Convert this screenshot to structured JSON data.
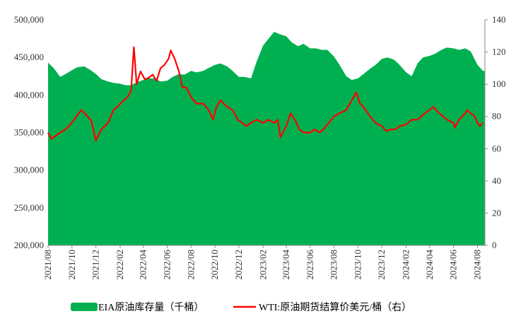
{
  "chart_data": {
    "type": "area+line",
    "title": "",
    "series": [
      {
        "name": "EIA原油库存量（千桶）",
        "kind": "area",
        "axis": "left",
        "color": "#00b050",
        "x": [
          "2021-08-01",
          "2021-08-15",
          "2021-09-01",
          "2021-09-15",
          "2021-10-01",
          "2021-10-15",
          "2021-11-01",
          "2021-11-15",
          "2021-12-01",
          "2021-12-15",
          "2022-01-01",
          "2022-01-15",
          "2022-02-01",
          "2022-02-15",
          "2022-03-01",
          "2022-03-15",
          "2022-04-01",
          "2022-04-15",
          "2022-05-01",
          "2022-05-15",
          "2022-06-01",
          "2022-06-15",
          "2022-07-01",
          "2022-07-15",
          "2022-08-01",
          "2022-08-15",
          "2022-09-01",
          "2022-09-15",
          "2022-10-01",
          "2022-10-15",
          "2022-11-01",
          "2022-11-15",
          "2022-12-01",
          "2022-12-15",
          "2023-01-01",
          "2023-01-15",
          "2023-02-01",
          "2023-02-15",
          "2023-03-01",
          "2023-03-15",
          "2023-04-01",
          "2023-04-15",
          "2023-05-01",
          "2023-05-15",
          "2023-06-01",
          "2023-06-15",
          "2023-07-01",
          "2023-07-15",
          "2023-08-01",
          "2023-08-15",
          "2023-09-01",
          "2023-09-15",
          "2023-10-01",
          "2023-10-15",
          "2023-11-01",
          "2023-11-15",
          "2023-12-01",
          "2023-12-15",
          "2024-01-01",
          "2024-01-15",
          "2024-02-01",
          "2024-02-15",
          "2024-03-01",
          "2024-03-15",
          "2024-04-01",
          "2024-04-15",
          "2024-05-01",
          "2024-05-15",
          "2024-06-01",
          "2024-06-15",
          "2024-07-01",
          "2024-07-15",
          "2024-08-01",
          "2024-08-15"
        ],
        "values": [
          443000,
          436000,
          424000,
          428000,
          433000,
          437000,
          438000,
          434000,
          428000,
          421000,
          418000,
          416000,
          415000,
          413000,
          413000,
          417000,
          420000,
          422000,
          422000,
          418000,
          419000,
          424000,
          428000,
          427000,
          432000,
          430000,
          432000,
          436000,
          440000,
          442000,
          438000,
          432000,
          424000,
          424000,
          422000,
          444000,
          466000,
          475000,
          484000,
          481000,
          478000,
          470000,
          465000,
          468000,
          462000,
          462000,
          460000,
          460000,
          451000,
          440000,
          425000,
          420000,
          422000,
          428000,
          435000,
          440000,
          448000,
          450000,
          447000,
          440000,
          430000,
          425000,
          442000,
          450000,
          452000,
          455000,
          460000,
          463000,
          462000,
          460000,
          462000,
          458000,
          440000,
          432000
        ]
      },
      {
        "name": "WTI:原油期货结算价美元/桶（右）",
        "kind": "line",
        "axis": "right",
        "color": "#ff0000",
        "x": [
          "2021-08-01",
          "2021-08-10",
          "2021-08-20",
          "2021-09-01",
          "2021-09-15",
          "2021-10-01",
          "2021-10-15",
          "2021-10-25",
          "2021-11-10",
          "2021-11-20",
          "2021-12-01",
          "2021-12-15",
          "2022-01-01",
          "2022-01-15",
          "2022-01-25",
          "2022-02-10",
          "2022-02-20",
          "2022-03-01",
          "2022-03-08",
          "2022-03-15",
          "2022-03-25",
          "2022-04-05",
          "2022-04-15",
          "2022-04-25",
          "2022-05-05",
          "2022-05-15",
          "2022-05-25",
          "2022-06-05",
          "2022-06-10",
          "2022-06-20",
          "2022-07-01",
          "2022-07-10",
          "2022-07-20",
          "2022-08-01",
          "2022-08-15",
          "2022-09-01",
          "2022-09-15",
          "2022-09-26",
          "2022-10-05",
          "2022-10-15",
          "2022-11-01",
          "2022-11-15",
          "2022-11-28",
          "2022-12-10",
          "2022-12-20",
          "2023-01-01",
          "2023-01-15",
          "2023-02-01",
          "2023-02-15",
          "2023-03-01",
          "2023-03-10",
          "2023-03-17",
          "2023-04-01",
          "2023-04-12",
          "2023-04-25",
          "2023-05-04",
          "2023-05-15",
          "2023-06-01",
          "2023-06-12",
          "2023-06-25",
          "2023-07-05",
          "2023-07-15",
          "2023-08-01",
          "2023-08-15",
          "2023-09-01",
          "2023-09-15",
          "2023-09-27",
          "2023-10-06",
          "2023-10-15",
          "2023-11-01",
          "2023-11-15",
          "2023-12-01",
          "2023-12-12",
          "2023-12-25",
          "2024-01-05",
          "2024-01-15",
          "2024-02-01",
          "2024-02-15",
          "2024-03-01",
          "2024-03-15",
          "2024-04-01",
          "2024-04-10",
          "2024-04-25",
          "2024-05-05",
          "2024-05-15",
          "2024-06-01",
          "2024-06-04",
          "2024-06-15",
          "2024-07-01",
          "2024-07-05",
          "2024-07-15",
          "2024-07-25",
          "2024-08-01",
          "2024-08-07",
          "2024-08-15"
        ],
        "values": [
          70,
          66,
          68,
          70,
          72,
          76,
          81,
          84,
          80,
          77,
          65,
          72,
          76,
          84,
          86,
          90,
          92,
          96,
          123,
          100,
          108,
          103,
          104,
          106,
          102,
          110,
          112,
          116,
          121,
          116,
          108,
          98,
          98,
          92,
          88,
          88,
          84,
          78,
          86,
          90,
          86,
          84,
          78,
          76,
          74,
          76,
          78,
          76,
          78,
          76,
          78,
          67,
          74,
          82,
          77,
          72,
          70,
          70,
          72,
          70,
          72,
          75,
          80,
          82,
          84,
          90,
          95,
          88,
          86,
          80,
          76,
          74,
          71,
          72,
          72,
          74,
          75,
          78,
          78,
          81,
          84,
          86,
          82,
          80,
          78,
          76,
          73,
          78,
          82,
          84,
          82,
          80,
          76,
          74,
          76
        ]
      }
    ],
    "y_left": {
      "min": 200000,
      "max": 500000,
      "ticks": [
        "200,000",
        "250,000",
        "300,000",
        "350,000",
        "400,000",
        "450,000",
        "500,000"
      ]
    },
    "y_right": {
      "min": 0,
      "max": 140,
      "ticks": [
        "0",
        "20",
        "40",
        "60",
        "80",
        "100",
        "120",
        "140"
      ]
    },
    "x_axis": {
      "range": [
        "2021-08-01",
        "2024-08-20"
      ],
      "ticks": [
        "2021/08",
        "2021/10",
        "2021/12",
        "2022/02",
        "2022/04",
        "2022/06",
        "2022/08",
        "2022/10",
        "2022/12",
        "2023/02",
        "2023/04",
        "2023/06",
        "2023/08",
        "2023/10",
        "2023/12",
        "2024/02",
        "2024/04",
        "2024/06",
        "2024/08"
      ]
    },
    "legend": {
      "position": "bottom"
    },
    "grid": false
  }
}
